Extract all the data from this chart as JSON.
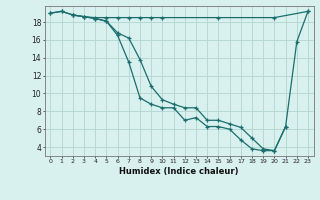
{
  "xlabel": "Humidex (Indice chaleur)",
  "background_color": "#d8f0ee",
  "grid_color": "#b8d8d4",
  "line_color": "#1a6e6e",
  "xlim": [
    -0.5,
    23.5
  ],
  "ylim": [
    3.0,
    19.8
  ],
  "xticks": [
    0,
    1,
    2,
    3,
    4,
    5,
    6,
    7,
    8,
    9,
    10,
    11,
    12,
    13,
    14,
    15,
    16,
    17,
    18,
    19,
    20,
    21,
    22,
    23
  ],
  "yticks": [
    4,
    6,
    8,
    10,
    12,
    14,
    16,
    18
  ],
  "line1_x": [
    0,
    1,
    2,
    3,
    4,
    5,
    6,
    7,
    8,
    9,
    10,
    15,
    20,
    23
  ],
  "line1_y": [
    19.0,
    19.2,
    18.8,
    18.6,
    18.5,
    18.5,
    18.5,
    18.5,
    18.5,
    18.5,
    18.5,
    18.5,
    18.5,
    19.2
  ],
  "line2_x": [
    0,
    1,
    2,
    3,
    4,
    5,
    6,
    7,
    8,
    9,
    10,
    11,
    12,
    13,
    14,
    15,
    16,
    17,
    18,
    19,
    20,
    21,
    22,
    23
  ],
  "line2_y": [
    19.0,
    19.2,
    18.8,
    18.6,
    18.4,
    18.1,
    16.8,
    16.2,
    13.8,
    10.8,
    9.3,
    8.8,
    8.4,
    8.4,
    7.0,
    7.0,
    6.6,
    6.2,
    5.0,
    3.8,
    3.6,
    6.3,
    15.8,
    19.2
  ],
  "line3_x": [
    2,
    3,
    4,
    5,
    6,
    7,
    8,
    9,
    10,
    11,
    12,
    13,
    14,
    15,
    16,
    17,
    18,
    19,
    20,
    21
  ],
  "line3_y": [
    18.8,
    18.6,
    18.4,
    18.1,
    16.5,
    13.5,
    9.5,
    8.8,
    8.4,
    8.4,
    7.0,
    7.3,
    6.3,
    6.3,
    6.0,
    4.8,
    3.8,
    3.6,
    3.6,
    6.3
  ]
}
